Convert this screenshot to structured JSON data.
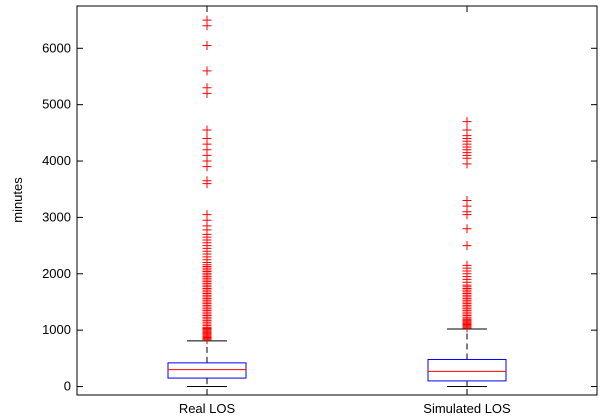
{
  "chart_data": {
    "type": "box",
    "title": "",
    "xlabel": "",
    "ylabel": "minutes",
    "ylim": [
      -150,
      6750
    ],
    "yticks": [
      0,
      1000,
      2000,
      3000,
      4000,
      5000,
      6000
    ],
    "grid": false,
    "colors": {
      "box": "#0000ff",
      "median": "#ff0000",
      "whisker": "#000000",
      "outlier": "#ff0000"
    },
    "categories": [
      "Real LOS",
      "Simulated LOS"
    ],
    "boxes": [
      {
        "name": "Real LOS",
        "whisker_low": 0,
        "q1": 150,
        "median": 300,
        "q3": 420,
        "whisker_high": 810,
        "outliers": [
          830,
          850,
          870,
          890,
          910,
          930,
          950,
          970,
          990,
          1010,
          1030,
          1050,
          1080,
          1110,
          1140,
          1170,
          1200,
          1230,
          1260,
          1290,
          1320,
          1350,
          1380,
          1410,
          1440,
          1470,
          1500,
          1530,
          1560,
          1590,
          1620,
          1650,
          1680,
          1710,
          1740,
          1770,
          1800,
          1830,
          1860,
          1890,
          1920,
          1950,
          1980,
          2010,
          2040,
          2070,
          2100,
          2130,
          2160,
          2200,
          2250,
          2300,
          2350,
          2400,
          2450,
          2500,
          2550,
          2600,
          2650,
          2700,
          2780,
          2850,
          2950,
          3050,
          3600,
          3650,
          3900,
          4000,
          4100,
          4200,
          4300,
          4400,
          4550,
          5200,
          5300,
          5600,
          6050,
          6400,
          6500
        ]
      },
      {
        "name": "Simulated LOS",
        "whisker_low": 0,
        "q1": 100,
        "median": 270,
        "q3": 480,
        "whisker_high": 1020,
        "outliers": [
          1040,
          1060,
          1080,
          1100,
          1120,
          1140,
          1160,
          1180,
          1200,
          1230,
          1260,
          1290,
          1320,
          1350,
          1380,
          1410,
          1440,
          1470,
          1500,
          1530,
          1560,
          1590,
          1620,
          1650,
          1680,
          1710,
          1740,
          1770,
          1800,
          1850,
          1900,
          1950,
          2000,
          2050,
          2100,
          2150,
          2500,
          2800,
          3050,
          3100,
          3200,
          3300,
          3950,
          4050,
          4100,
          4150,
          4200,
          4250,
          4300,
          4350,
          4400,
          4450,
          4550,
          4700
        ]
      }
    ]
  }
}
